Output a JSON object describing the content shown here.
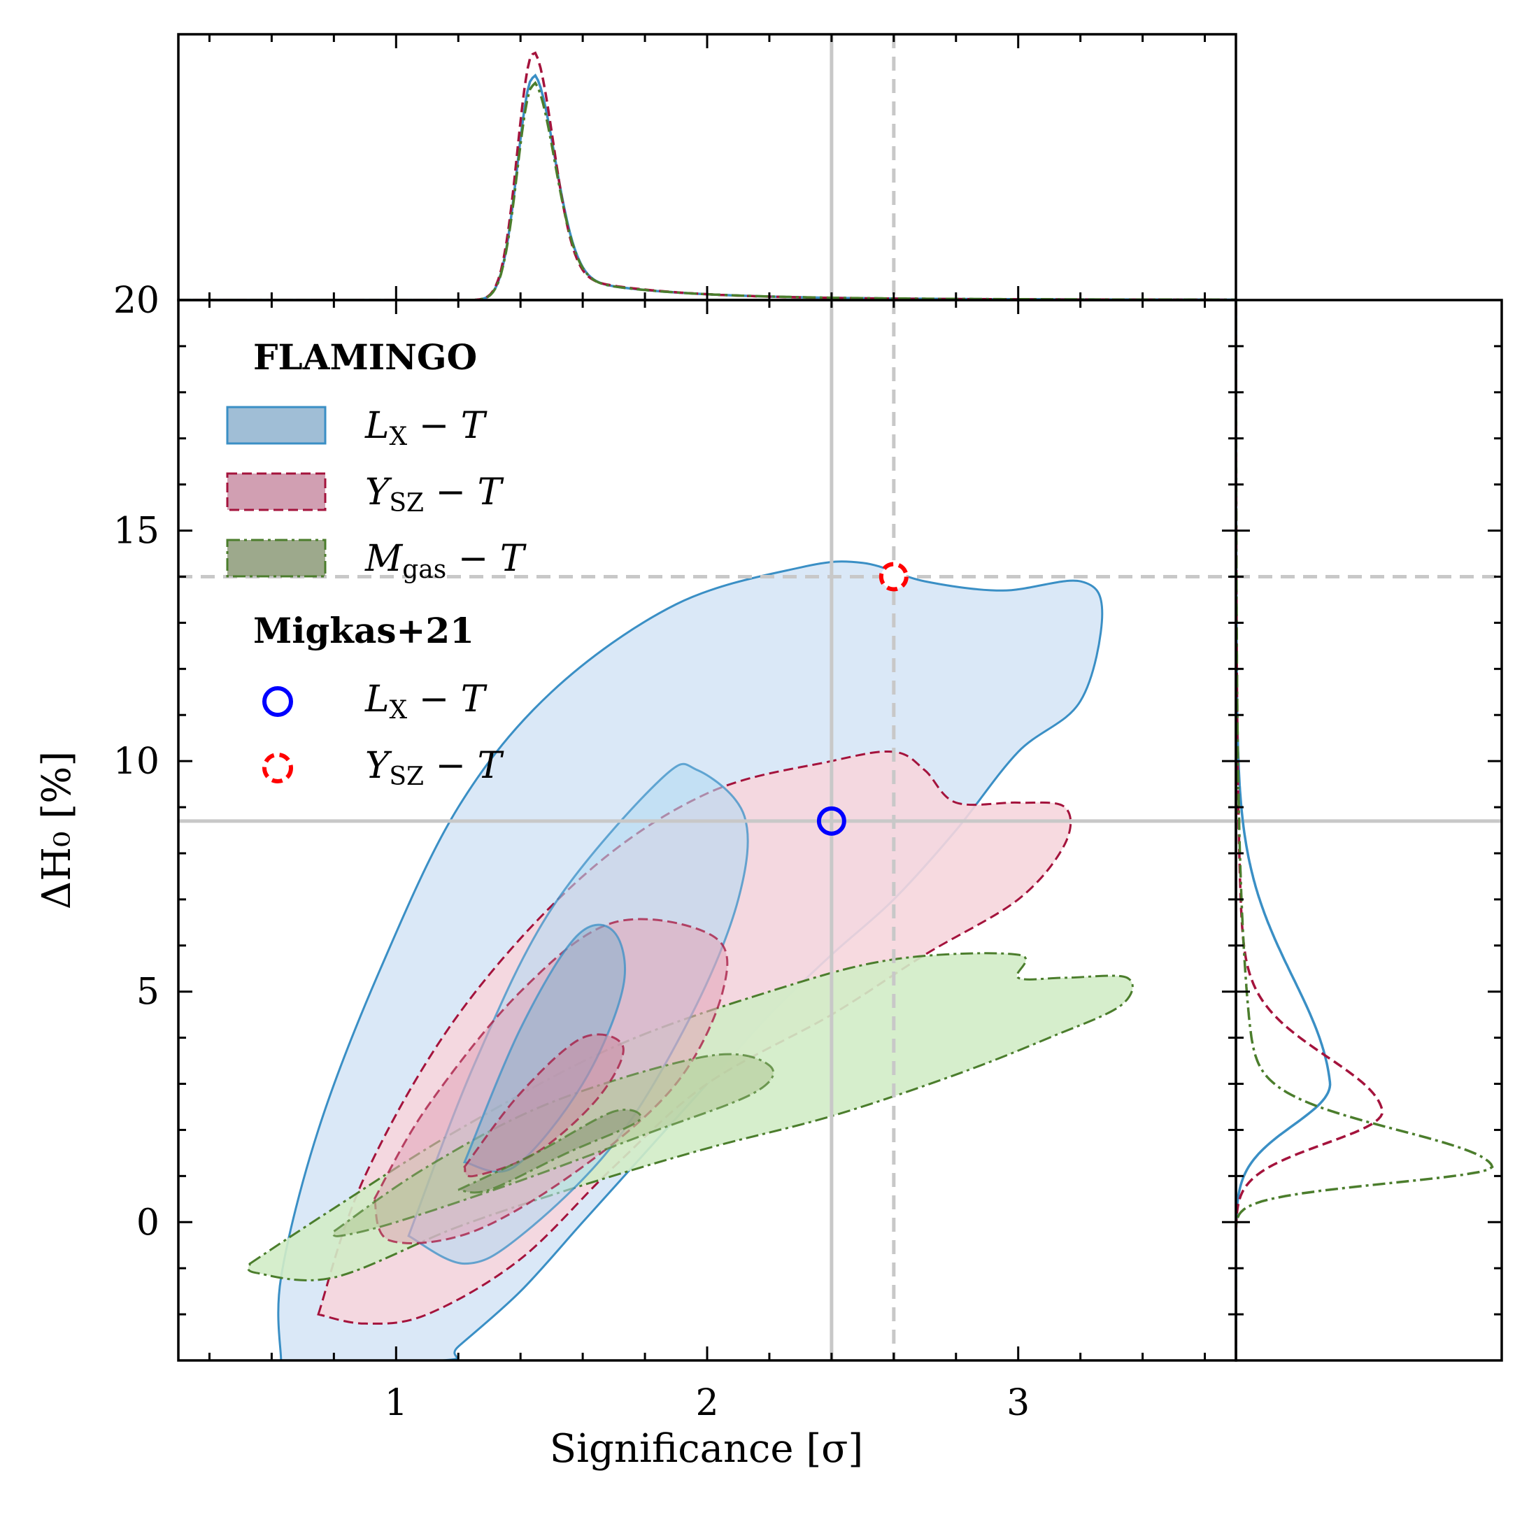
{
  "chart_data": {
    "type": "contour",
    "xlabel": "Significance [σ]",
    "ylabel": "ΔH₀ [%]",
    "xlim": [
      0.3,
      3.7
    ],
    "ylim": [
      -3,
      20
    ],
    "xticks": [
      "1",
      "2",
      "3"
    ],
    "yticks": [
      "0",
      "5",
      "10",
      "15",
      "20"
    ],
    "reference_lines": {
      "vertical": [
        {
          "x": 2.4,
          "style": "solid"
        },
        {
          "x": 2.6,
          "style": "dashed"
        }
      ],
      "horizontal": [
        {
          "y": 8.7,
          "style": "solid"
        },
        {
          "y": 14.0,
          "style": "dashed"
        }
      ]
    },
    "legend": {
      "placement": "top-left",
      "groups": [
        {
          "title": "FLAMINGO",
          "entries": [
            {
              "label": "L_X − T",
              "main": "L",
              "sub": "X",
              "suffix": " − T",
              "color": "#3a8fc5",
              "style": "solid"
            },
            {
              "label": "Y_SZ − T",
              "main": "Y",
              "sub": "SZ",
              "suffix": " − T",
              "color": "#a4133c",
              "style": "dashed"
            },
            {
              "label": "M_gas − T",
              "main": "M",
              "sub": "gas",
              "suffix": " − T",
              "color": "#4b7d2c",
              "style": "dashdot"
            }
          ]
        },
        {
          "title": "Migkas+21",
          "entries": [
            {
              "label": "L_X − T",
              "main": "L",
              "sub": "X",
              "suffix": " − T",
              "color": "#0000ff",
              "marker": "circle"
            },
            {
              "label": "Y_SZ − T",
              "main": "Y",
              "sub": "SZ",
              "suffix": " − T",
              "color": "#ff0000",
              "marker": "dashed-circle"
            }
          ]
        }
      ]
    },
    "series": [
      {
        "name": "L_X − T",
        "style": "solid",
        "line_color": "#3a8fc5",
        "fill_colors": [
          "#d6e6f6",
          "#b4dbf2",
          "#8fb3cf"
        ],
        "contours": [
          [
            [
              0.63,
              -3.0
            ],
            [
              0.63,
              -1.2
            ],
            [
              0.75,
              2.0
            ],
            [
              0.95,
              5.5
            ],
            [
              1.2,
              9.0
            ],
            [
              1.5,
              11.5
            ],
            [
              1.9,
              13.4
            ],
            [
              2.3,
              14.2
            ],
            [
              2.5,
              14.3
            ],
            [
              2.7,
              13.9
            ],
            [
              2.95,
              13.7
            ],
            [
              3.2,
              13.9
            ],
            [
              3.27,
              13.2
            ],
            [
              3.2,
              11.3
            ],
            [
              3.0,
              10.2
            ],
            [
              2.8,
              8.5
            ],
            [
              2.6,
              7.0
            ],
            [
              2.4,
              5.8
            ],
            [
              2.2,
              4.5
            ],
            [
              2.0,
              3.0
            ],
            [
              1.8,
              1.5
            ],
            [
              1.6,
              0.0
            ],
            [
              1.4,
              -1.5
            ],
            [
              1.2,
              -2.7
            ],
            [
              1.15,
              -3.0
            ],
            [
              0.63,
              -3.0
            ]
          ],
          [
            [
              1.04,
              -0.3
            ],
            [
              1.25,
              3.4
            ],
            [
              1.5,
              6.8
            ],
            [
              1.85,
              9.6
            ],
            [
              1.97,
              9.8
            ],
            [
              2.12,
              8.8
            ],
            [
              2.1,
              7.0
            ],
            [
              1.95,
              4.5
            ],
            [
              1.7,
              1.7
            ],
            [
              1.4,
              -0.3
            ],
            [
              1.22,
              -0.9
            ],
            [
              1.04,
              -0.3
            ]
          ],
          [
            [
              1.22,
              1.3
            ],
            [
              1.4,
              4.2
            ],
            [
              1.58,
              6.2
            ],
            [
              1.7,
              6.3
            ],
            [
              1.73,
              5.1
            ],
            [
              1.6,
              3.0
            ],
            [
              1.38,
              1.2
            ],
            [
              1.22,
              1.3
            ]
          ]
        ]
      },
      {
        "name": "Y_SZ − T",
        "style": "dashed",
        "line_color": "#a4133c",
        "fill_colors": [
          "#f6d6dd",
          "#e3a9bb",
          "#c98ea4"
        ],
        "contours": [
          [
            [
              0.75,
              -2.0
            ],
            [
              0.9,
              1.0
            ],
            [
              1.2,
              4.5
            ],
            [
              1.6,
              7.5
            ],
            [
              2.0,
              9.3
            ],
            [
              2.4,
              10.0
            ],
            [
              2.6,
              10.2
            ],
            [
              2.7,
              9.8
            ],
            [
              2.8,
              9.1
            ],
            [
              3.0,
              9.1
            ],
            [
              3.15,
              9.0
            ],
            [
              3.15,
              8.2
            ],
            [
              3.0,
              7.0
            ],
            [
              2.7,
              5.8
            ],
            [
              2.4,
              4.5
            ],
            [
              2.0,
              3.0
            ],
            [
              1.7,
              1.2
            ],
            [
              1.4,
              -0.8
            ],
            [
              1.1,
              -2.0
            ],
            [
              0.9,
              -2.2
            ],
            [
              0.75,
              -2.0
            ]
          ],
          [
            [
              0.93,
              0.5
            ],
            [
              1.1,
              2.5
            ],
            [
              1.4,
              5.0
            ],
            [
              1.7,
              6.5
            ],
            [
              2.02,
              6.2
            ],
            [
              2.05,
              5.0
            ],
            [
              1.9,
              3.0
            ],
            [
              1.6,
              1.2
            ],
            [
              1.25,
              -0.2
            ],
            [
              0.98,
              -0.4
            ],
            [
              0.93,
              0.5
            ]
          ],
          [
            [
              1.22,
              1.2
            ],
            [
              1.4,
              2.8
            ],
            [
              1.6,
              4.0
            ],
            [
              1.73,
              3.8
            ],
            [
              1.65,
              2.7
            ],
            [
              1.45,
              1.5
            ],
            [
              1.25,
              1.0
            ],
            [
              1.22,
              1.2
            ]
          ]
        ]
      },
      {
        "name": "M_gas − T",
        "style": "dashdot",
        "line_color": "#4b7d2c",
        "fill_colors": [
          "#d2ecc6",
          "#b3ca98",
          "#8c9a78"
        ],
        "contours": [
          [
            [
              0.53,
              -0.9
            ],
            [
              0.8,
              0.3
            ],
            [
              1.2,
              2.0
            ],
            [
              1.7,
              3.8
            ],
            [
              2.2,
              5.0
            ],
            [
              2.6,
              5.7
            ],
            [
              3.0,
              5.8
            ],
            [
              3.0,
              5.3
            ],
            [
              3.15,
              5.3
            ],
            [
              3.35,
              5.3
            ],
            [
              3.33,
              4.7
            ],
            [
              3.1,
              4.0
            ],
            [
              2.8,
              3.2
            ],
            [
              2.4,
              2.3
            ],
            [
              2.0,
              1.6
            ],
            [
              1.6,
              0.8
            ],
            [
              1.2,
              -0.1
            ],
            [
              0.8,
              -1.2
            ],
            [
              0.55,
              -1.1
            ],
            [
              0.53,
              -0.9
            ]
          ],
          [
            [
              0.8,
              -0.2
            ],
            [
              1.1,
              1.2
            ],
            [
              1.5,
              2.6
            ],
            [
              2.0,
              3.6
            ],
            [
              2.2,
              3.4
            ],
            [
              2.15,
              2.8
            ],
            [
              1.8,
              1.9
            ],
            [
              1.4,
              0.9
            ],
            [
              1.0,
              0.0
            ],
            [
              0.82,
              -0.3
            ],
            [
              0.8,
              -0.2
            ]
          ],
          [
            [
              1.2,
              0.7
            ],
            [
              1.45,
              1.5
            ],
            [
              1.7,
              2.4
            ],
            [
              1.78,
              2.2
            ],
            [
              1.55,
              1.5
            ],
            [
              1.3,
              0.7
            ],
            [
              1.2,
              0.7
            ]
          ]
        ]
      }
    ],
    "points": [
      {
        "name": "Migkas+21 L_X − T",
        "x": 2.4,
        "y": 8.7,
        "color": "#0000ff",
        "marker": "circle"
      },
      {
        "name": "Migkas+21 Y_SZ − T",
        "x": 2.6,
        "y": 14.0,
        "color": "#ff0000",
        "marker": "dashed-circle"
      }
    ],
    "marginal_x": [
      {
        "series": "L_X − T",
        "peak_x": 1.44,
        "peak_height": 0.85,
        "width_left": 0.05,
        "width_right": 0.07,
        "tail": 0.13
      },
      {
        "series": "Y_SZ − T",
        "peak_x": 1.44,
        "peak_height": 0.94,
        "width_left": 0.05,
        "width_right": 0.065,
        "tail": 0.11
      },
      {
        "series": "M_gas − T",
        "peak_x": 1.44,
        "peak_height": 0.82,
        "width_left": 0.05,
        "width_right": 0.07,
        "tail": 0.14
      }
    ],
    "marginal_y": [
      {
        "series": "L_X − T",
        "peak_y": 3.0,
        "peak_height": 0.36,
        "spread_low": 0.9,
        "spread_high": 2.4,
        "tail": 0.12
      },
      {
        "series": "Y_SZ − T",
        "peak_y": 2.4,
        "peak_height": 0.56,
        "spread_low": 0.7,
        "spread_high": 1.2,
        "tail": 0.1
      },
      {
        "series": "M_gas − T",
        "peak_y": 1.2,
        "peak_height": 0.98,
        "spread_low": 0.35,
        "spread_high": 0.8,
        "tail": 0.05
      }
    ]
  }
}
